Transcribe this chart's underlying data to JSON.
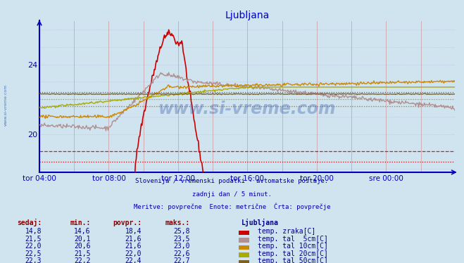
{
  "title": "Ljubljana",
  "title_color": "#0000cc",
  "bg_color": "#d0e4f0",
  "plot_bg_color": "#d0e4f0",
  "axis_color": "#0000bb",
  "grid_color_v": "#cc4444",
  "grid_color_h": "#aaaacc",
  "x_tick_labels": [
    "tor 04:00",
    "tor 08:00",
    "tor 12:00",
    "tor 16:00",
    "tor 20:00",
    "sre 00:00"
  ],
  "x_tick_positions": [
    0,
    96,
    192,
    288,
    384,
    480
  ],
  "n_points": 576,
  "ylim": [
    17.8,
    26.5
  ],
  "yticks": [
    20,
    24
  ],
  "watermark": "www.si-vreme.com",
  "subtitle1": "Slovenija / vremenski podatki - avtomatske postaje.",
  "subtitle2": "zadnji dan / 5 minut.",
  "subtitle3": "Meritve: povprečne  Enote: metrične  Črta: povprečje",
  "subtitle_color": "#0000aa",
  "legend_labels": [
    "temp. zraka[C]",
    "temp. tal  5cm[C]",
    "temp. tal 10cm[C]",
    "temp. tal 20cm[C]",
    "temp. tal 50cm[C]"
  ],
  "legend_colors": [
    "#cc0000",
    "#b09090",
    "#cc8800",
    "#aaaa00",
    "#806020"
  ],
  "avg_values": [
    18.4,
    21.6,
    21.6,
    22.0,
    22.4
  ],
  "avg_dashed_colors": [
    "#cc0000",
    "#b09090",
    "#cc8800",
    "#aaaa00",
    "#806020"
  ],
  "ref_dashed_y": 19.0,
  "table_data": {
    "headers": [
      "sedaj:",
      "min.:",
      "povpr.:",
      "maks.:"
    ],
    "rows": [
      [
        14.8,
        14.6,
        18.4,
        25.8
      ],
      [
        21.5,
        20.1,
        21.6,
        23.5
      ],
      [
        22.0,
        20.6,
        21.6,
        23.0
      ],
      [
        22.5,
        21.5,
        22.0,
        22.6
      ],
      [
        22.3,
        22.2,
        22.4,
        22.7
      ]
    ]
  }
}
